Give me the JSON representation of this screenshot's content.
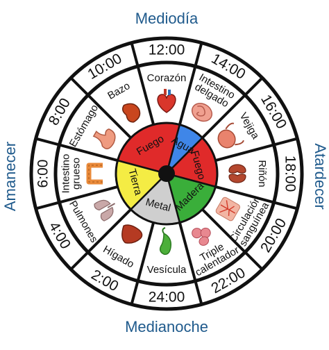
{
  "cardinals": {
    "top": "Mediodía",
    "bottom": "Medianoche",
    "left": "Amanecer",
    "right": "Atardecer"
  },
  "segments": [
    {
      "time": "12:00",
      "organ": [
        "Corazón"
      ],
      "icon": "heart-icon",
      "icon_color": "#d9362b"
    },
    {
      "time": "14:00",
      "organ": [
        "Intestino",
        "delgado"
      ],
      "icon": "small-intestine-icon",
      "icon_color": "#f0a090"
    },
    {
      "time": "16:00",
      "organ": [
        "Vejiga"
      ],
      "icon": "bladder-icon",
      "icon_color": "#e9836d"
    },
    {
      "time": "18:00",
      "organ": [
        "Riñón"
      ],
      "icon": "kidney-icon",
      "icon_color": "#b4472e"
    },
    {
      "time": "20:00",
      "organ": [
        "Circulación",
        "sanguínea"
      ],
      "icon": "circulation-icon",
      "icon_color": "#f2b5a3"
    },
    {
      "time": "22:00",
      "organ": [
        "Triple",
        "calentador"
      ],
      "icon": "triple-burner-icon",
      "icon_color": "#e88890"
    },
    {
      "time": "24:00",
      "organ": [
        "Vesícula"
      ],
      "icon": "gallbladder-icon",
      "icon_color": "#4caf3a"
    },
    {
      "time": "2:00",
      "organ": [
        "Hígado"
      ],
      "icon": "liver-icon",
      "icon_color": "#b53a22"
    },
    {
      "time": "4:00",
      "organ": [
        "Pulmones"
      ],
      "icon": "lungs-icon",
      "icon_color": "#c9a8a8"
    },
    {
      "time": "6:00",
      "organ": [
        "Intestino",
        "grueso"
      ],
      "icon": "large-intestine-icon",
      "icon_color": "#e98a3a"
    },
    {
      "time": "8:00",
      "organ": [
        "Estómago"
      ],
      "icon": "stomach-icon",
      "icon_color": "#ef9b80"
    },
    {
      "time": "10:00",
      "organ": [
        "Bazo"
      ],
      "icon": "spleen-icon",
      "icon_color": "#c9461e"
    }
  ],
  "elements": [
    {
      "name": "Fuego",
      "color": "#e02a2a",
      "start": -75,
      "end": 15
    },
    {
      "name": "Agua",
      "color": "#3f86e8",
      "start": 15,
      "end": 45
    },
    {
      "name": "Fuego",
      "color": "#e02a2a",
      "start": 45,
      "end": 105
    },
    {
      "name": "Madera",
      "color": "#3aae3a",
      "start": 105,
      "end": 165
    },
    {
      "name": "Metal",
      "color": "#cfcfcf",
      "start": 165,
      "end": 225
    },
    {
      "name": "Tierra",
      "color": "#f4ec44",
      "start": 225,
      "end": 285
    }
  ]
}
